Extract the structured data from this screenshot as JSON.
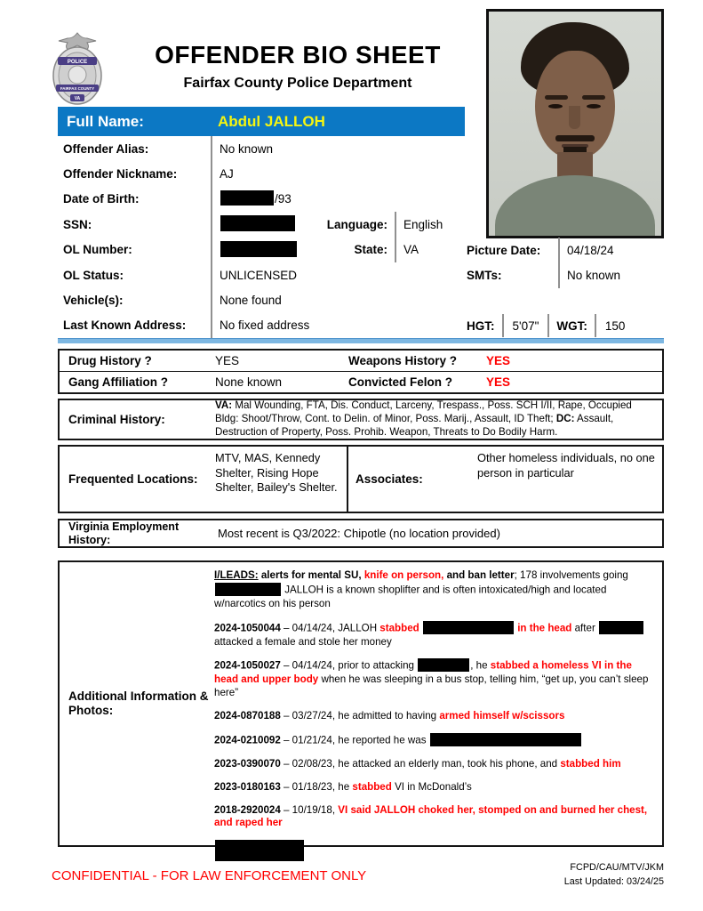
{
  "header": {
    "title": "OFFENDER BIO SHEET",
    "subtitle": "Fairfax County Police Department",
    "badge": {
      "band_top": "POLICE",
      "band_mid": "FAIRFAX COUNTY",
      "band_bottom": "VA"
    }
  },
  "name_bar": {
    "label": "Full Name:",
    "value": "Abdul JALLOH"
  },
  "identity": {
    "fields": [
      {
        "label": "Offender Alias:",
        "segments": [
          {
            "t": "No known"
          }
        ]
      },
      {
        "label": "Offender Nickname:",
        "segments": [
          {
            "t": "AJ"
          }
        ]
      },
      {
        "label": "Date of Birth:",
        "segments": [
          {
            "s": "x",
            "w": 60,
            "h": 17
          },
          {
            "t": "/93"
          }
        ]
      },
      {
        "label": "SSN:",
        "segments": [
          {
            "s": "x",
            "w": 84,
            "h": 18
          }
        ]
      },
      {
        "label": "OL Number:",
        "segments": [
          {
            "s": "x",
            "w": 86,
            "h": 18
          }
        ]
      },
      {
        "label": "OL Status:",
        "segments": [
          {
            "t": "UNLICENSED"
          }
        ]
      },
      {
        "label": "Vehicle(s):",
        "segments": [
          {
            "t": "None found"
          }
        ]
      },
      {
        "label": "Last Known Address:",
        "segments": [
          {
            "t": "No fixed address"
          }
        ]
      }
    ],
    "language": {
      "label": "Language:",
      "value": "English"
    },
    "state": {
      "label": "State:",
      "value": "VA"
    },
    "picture_date": {
      "label": "Picture Date:",
      "value": "04/18/24"
    },
    "smts": {
      "label": "SMTs:",
      "value": "No known"
    },
    "hgt": {
      "label": "HGT:",
      "value": "5'07\""
    },
    "wgt": {
      "label": "WGT:",
      "value": "150"
    }
  },
  "flags": {
    "rows": [
      {
        "label1": "Drug History ?",
        "value1": [
          {
            "t": "YES"
          }
        ],
        "label2": "Weapons History ?",
        "value2": [
          {
            "s": "rb",
            "t": "YES"
          }
        ]
      },
      {
        "label1": "Gang Affiliation ?",
        "value1": [
          {
            "t": "None known"
          }
        ],
        "label2": "Convicted Felon ?",
        "value2": [
          {
            "s": "rb",
            "t": "YES"
          }
        ]
      }
    ]
  },
  "criminal_history": {
    "label": "Criminal History:",
    "segments": [
      {
        "s": "b",
        "t": "VA:"
      },
      {
        "t": " Mal Wounding, FTA, Dis. Conduct, Larceny, Trespass., Poss. SCH I/II, Rape, Occupied Bldg: Shoot/Throw, Cont. to Delin. of Minor, Poss. Marij., Assault, ID Theft; "
      },
      {
        "s": "b",
        "t": "DC:"
      },
      {
        "t": " Assault, Destruction of Property, Poss. Prohib. Weapon, Threats to Do Bodily Harm."
      }
    ]
  },
  "frequented": {
    "label": "Frequented Locations:",
    "value": "MTV, MAS, Kennedy Shelter, Rising Hope Shelter, Bailey's Shelter."
  },
  "associates": {
    "label": "Associates:",
    "value": "Other homeless individuals, no one person in particular"
  },
  "employment": {
    "label": "Virginia Employment History:",
    "value": "Most recent is Q3/2022: Chipotle (no location provided)"
  },
  "additional": {
    "label": "Additional Information & Photos:",
    "entries": [
      {
        "segments": [
          {
            "s": "bu",
            "t": "I/LEADS:"
          },
          {
            "s": "b",
            "t": " alerts for mental SU, "
          },
          {
            "s": "rb",
            "t": "knife on person,"
          },
          {
            "s": "b",
            "t": " and ban letter"
          },
          {
            "t": "; 178 involvements going "
          },
          {
            "s": "x",
            "w": 74
          },
          {
            "t": " JALLOH is a known shoplifter and is often intoxicated/high and located w/narcotics on his person"
          }
        ]
      },
      {
        "segments": [
          {
            "s": "b",
            "t": "2024-1050044"
          },
          {
            "t": " – 04/14/24, JALLOH "
          },
          {
            "s": "rb",
            "t": "stabbed "
          },
          {
            "s": "x",
            "w": 102
          },
          {
            "s": "rb",
            "t": " in the head"
          },
          {
            "t": " after "
          },
          {
            "s": "x",
            "w": 50
          },
          {
            "t": " attacked a female and stole her money"
          }
        ]
      },
      {
        "segments": [
          {
            "s": "b",
            "t": "2024-1050027"
          },
          {
            "t": " – 04/14/24, prior to attacking "
          },
          {
            "s": "x",
            "w": 58
          },
          {
            "t": ", he "
          },
          {
            "s": "rb",
            "t": "stabbed a homeless VI in the head and upper body"
          },
          {
            "t": " when he was sleeping in a bus stop, telling him, “get up, you can’t sleep here”"
          }
        ]
      },
      {
        "segments": [
          {
            "s": "b",
            "t": "2024-0870188"
          },
          {
            "t": " – 03/27/24, he admitted to having "
          },
          {
            "s": "rb",
            "t": "armed himself w/scissors"
          }
        ]
      },
      {
        "segments": [
          {
            "s": "b",
            "t": "2024-0210092"
          },
          {
            "t": " – 01/21/24, he reported he was "
          },
          {
            "s": "x",
            "w": 170
          }
        ]
      },
      {
        "segments": [
          {
            "s": "b",
            "t": "2023-0390070"
          },
          {
            "t": " – 02/08/23, he attacked an elderly man, took his phone, and "
          },
          {
            "s": "rb",
            "t": "stabbed him"
          }
        ]
      },
      {
        "segments": [
          {
            "s": "b",
            "t": "2023-0180163"
          },
          {
            "t": " – 01/18/23, he "
          },
          {
            "s": "rb",
            "t": "stabbed"
          },
          {
            "t": " VI in McDonald’s"
          }
        ]
      },
      {
        "segments": [
          {
            "s": "b",
            "t": "2018-2920024"
          },
          {
            "t": " – 10/19/18, "
          },
          {
            "s": "rb",
            "t": "VI said JALLOH choked her, stomped on and burned her chest, and raped her"
          }
        ]
      },
      {
        "segments": [
          {
            "s": "x",
            "w": 100,
            "h": 24
          }
        ]
      }
    ]
  },
  "footer": {
    "confidential": "CONFIDENTIAL - FOR LAW ENFORCEMENT ONLY",
    "unit": "FCPD/CAU/MTV/JKM",
    "updated": "Last Updated: 03/24/25"
  }
}
